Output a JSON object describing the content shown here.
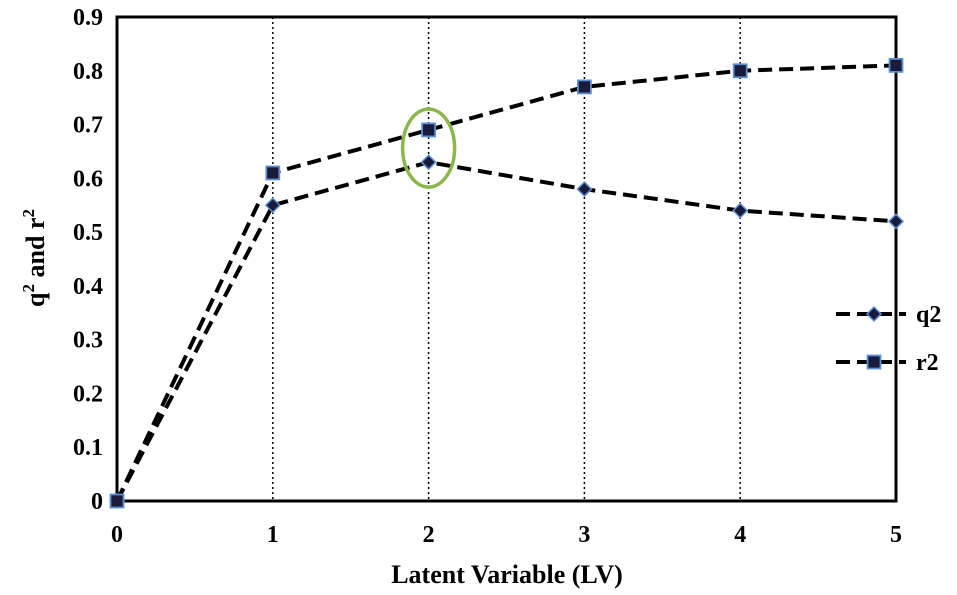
{
  "chart_data": {
    "type": "line",
    "title": "",
    "xlabel": "Latent Variable  (LV)",
    "ylabel": {
      "base1": "q",
      "sup1": "2",
      "mid": " and r",
      "sup2": "2"
    },
    "x": [
      0,
      1,
      2,
      3,
      4,
      5
    ],
    "x_ticks": [
      "0",
      "1",
      "2",
      "3",
      "4",
      "5"
    ],
    "y_ticks": [
      "0",
      "0.1",
      "0.2",
      "0.3",
      "0.4",
      "0.5",
      "0.6",
      "0.7",
      "0.8",
      "0.9"
    ],
    "xlim": [
      0,
      5
    ],
    "ylim": [
      0,
      0.9
    ],
    "grid": "vertical dotted lines at x = 1, 2, 3, 4, 5",
    "legend_position": "right",
    "series": [
      {
        "name": "q2",
        "marker": "diamond",
        "line_color": "#000000",
        "marker_fill": "#1a1a3a",
        "marker_edge": "#5b8fd6",
        "values": [
          0,
          0.55,
          0.63,
          0.58,
          0.54,
          0.52
        ]
      },
      {
        "name": "r2",
        "marker": "square",
        "line_color": "#000000",
        "marker_fill": "#1a1a3a",
        "marker_edge": "#5b8fd6",
        "values": [
          0,
          0.61,
          0.69,
          0.77,
          0.8,
          0.81
        ]
      }
    ],
    "annotation": {
      "shape": "ellipse",
      "color": "#8ab84a",
      "around_x": 2,
      "around_y": [
        0.63,
        0.69
      ]
    }
  }
}
